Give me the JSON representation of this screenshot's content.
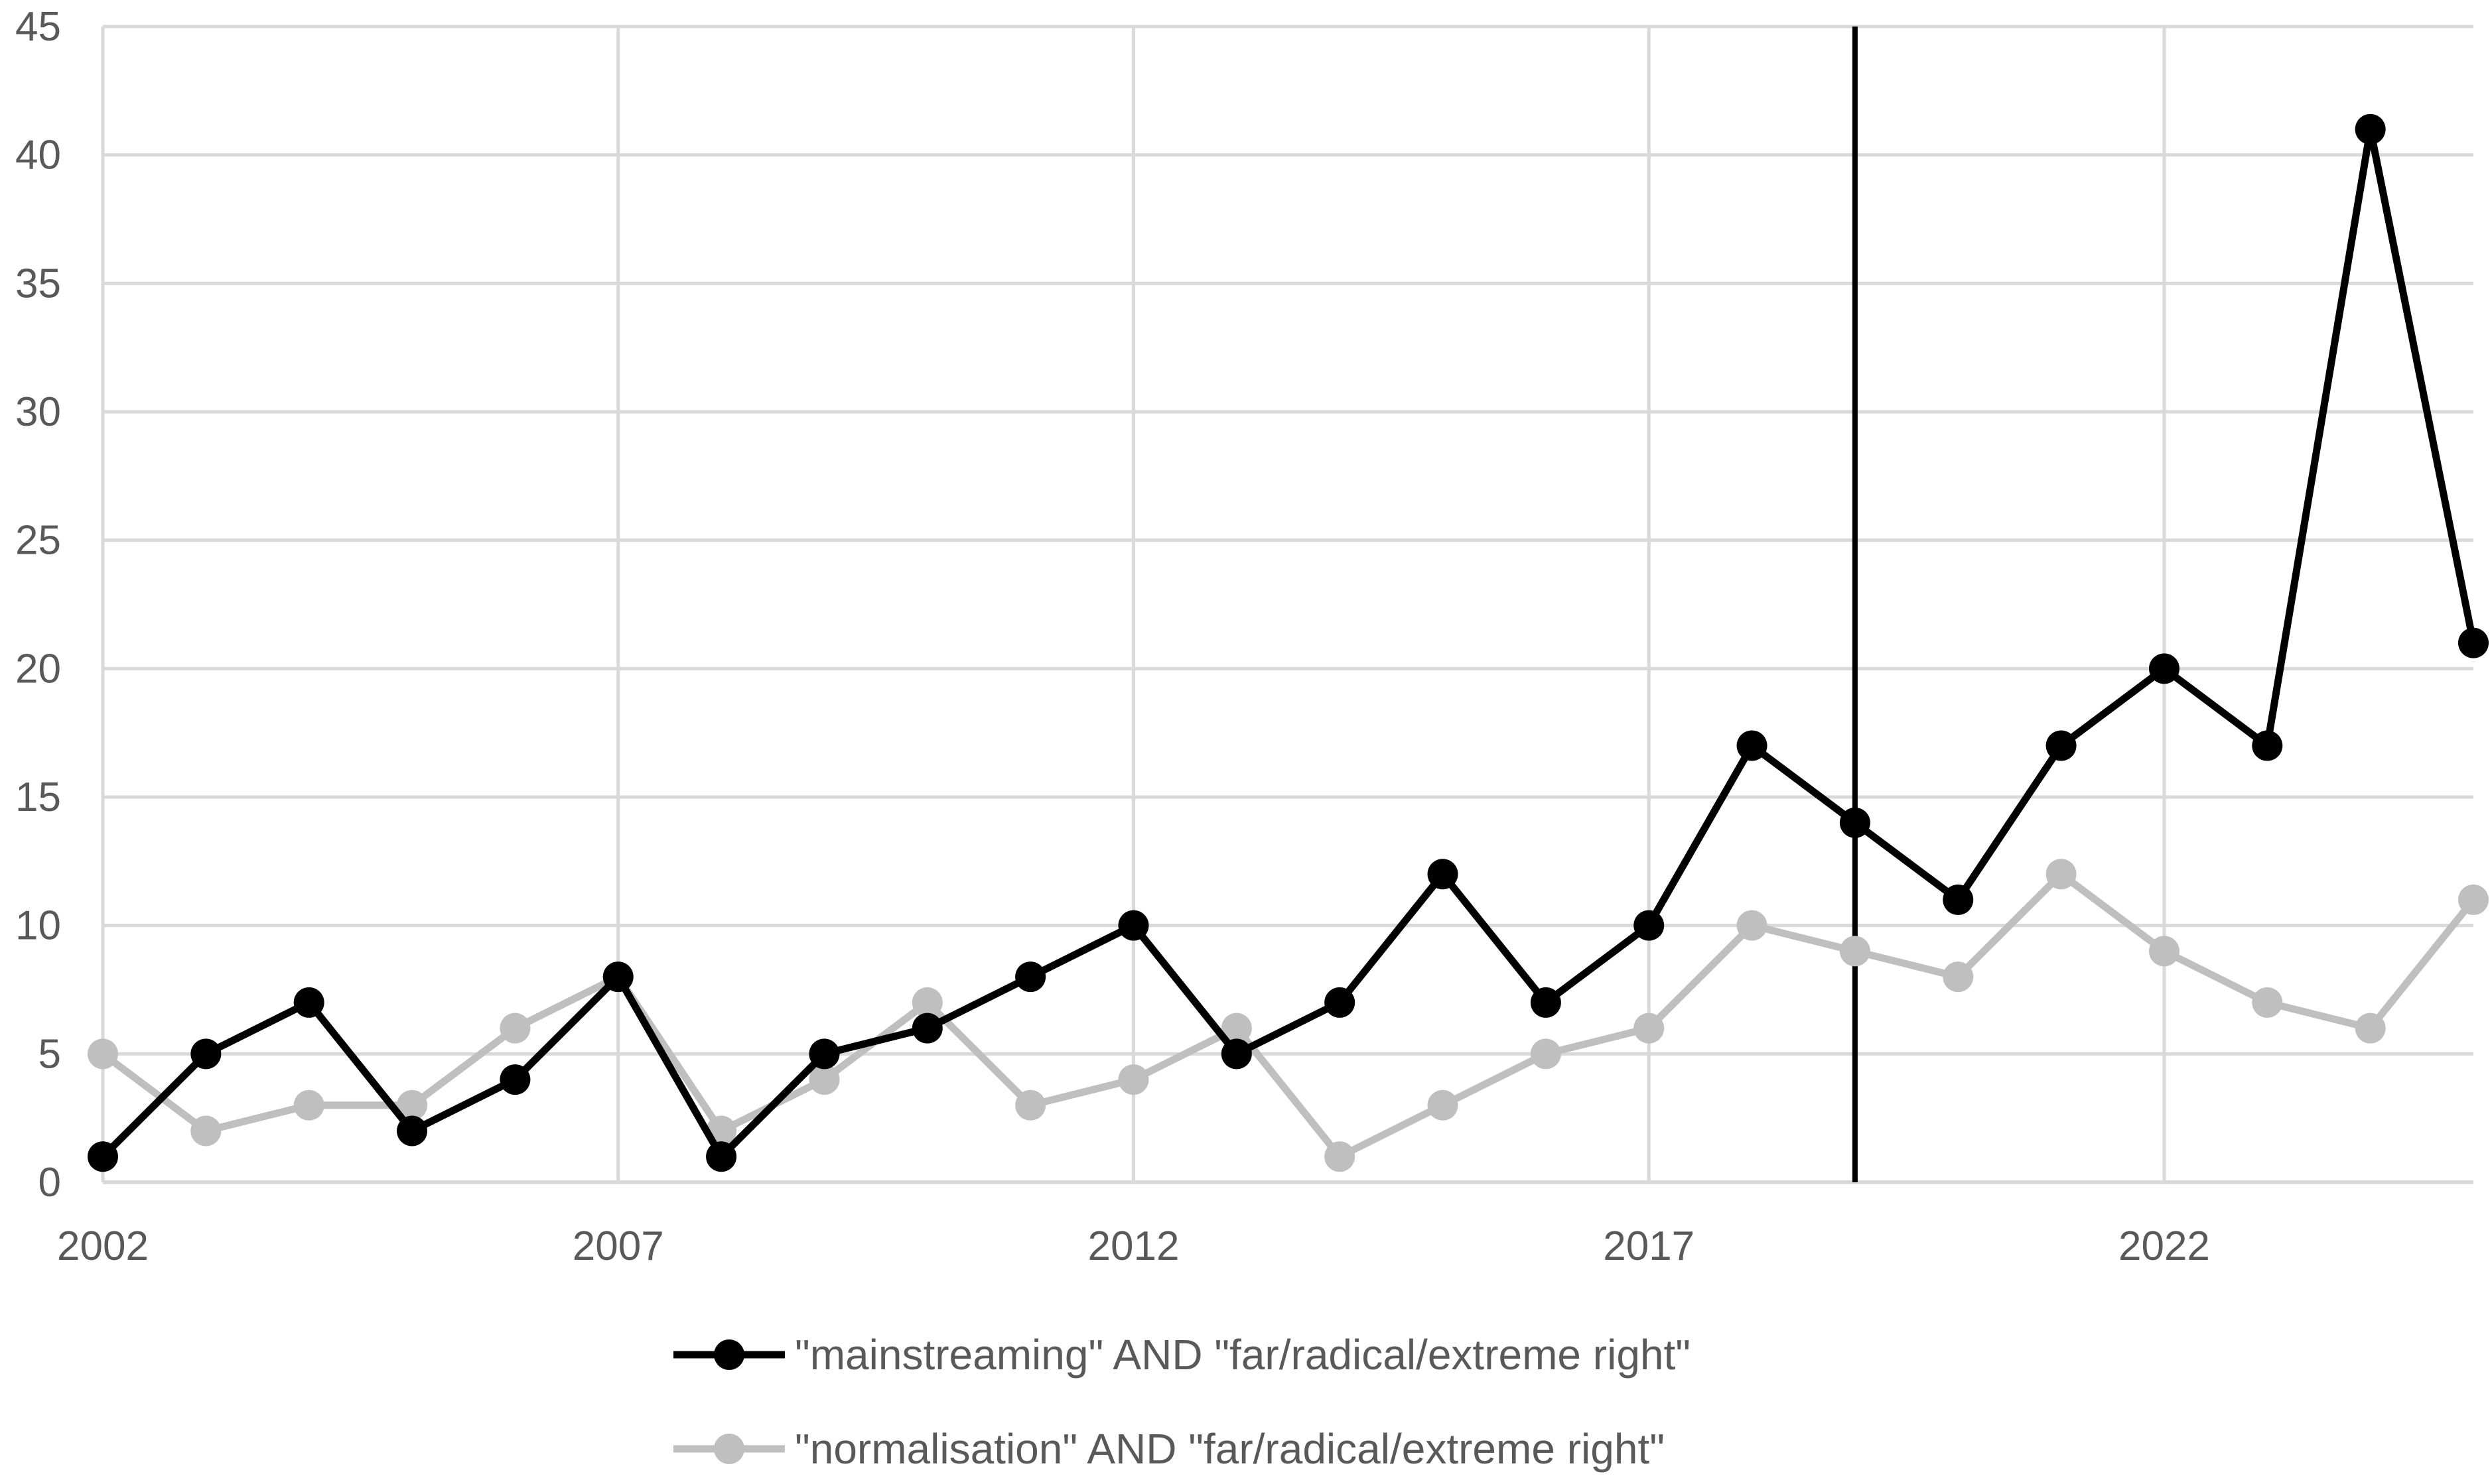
{
  "chart_data": {
    "type": "line",
    "title": "",
    "xlabel": "",
    "ylabel": "",
    "x": [
      2002,
      2003,
      2004,
      2005,
      2006,
      2007,
      2008,
      2009,
      2010,
      2011,
      2012,
      2013,
      2014,
      2015,
      2016,
      2017,
      2018,
      2019,
      2020,
      2021,
      2022,
      2023,
      2024,
      2025
    ],
    "xlim": [
      2002,
      2025
    ],
    "ylim": [
      0,
      45
    ],
    "x_ticks": [
      "2002",
      "2007",
      "2012",
      "2017",
      "2022"
    ],
    "y_ticks": [
      "0",
      "5",
      "10",
      "15",
      "20",
      "25",
      "30",
      "35",
      "40",
      "45"
    ],
    "grid": true,
    "legend_position": "bottom",
    "reference_line_x": 2019,
    "series": [
      {
        "name": "\"mainstreaming\" AND \"far/radical/extreme right\"",
        "color": "#000000",
        "values": [
          1,
          5,
          7,
          2,
          4,
          8,
          1,
          5,
          6,
          8,
          10,
          5,
          7,
          12,
          7,
          10,
          17,
          14,
          11,
          17,
          20,
          17,
          41,
          21
        ]
      },
      {
        "name": "\"normalisation\" AND \"far/radical/extreme right\"",
        "color": "#bfbfbf",
        "values": [
          5,
          2,
          3,
          3,
          6,
          8,
          2,
          4,
          7,
          3,
          4,
          6,
          1,
          3,
          5,
          6,
          10,
          9,
          8,
          12,
          9,
          7,
          6,
          11
        ]
      }
    ]
  }
}
